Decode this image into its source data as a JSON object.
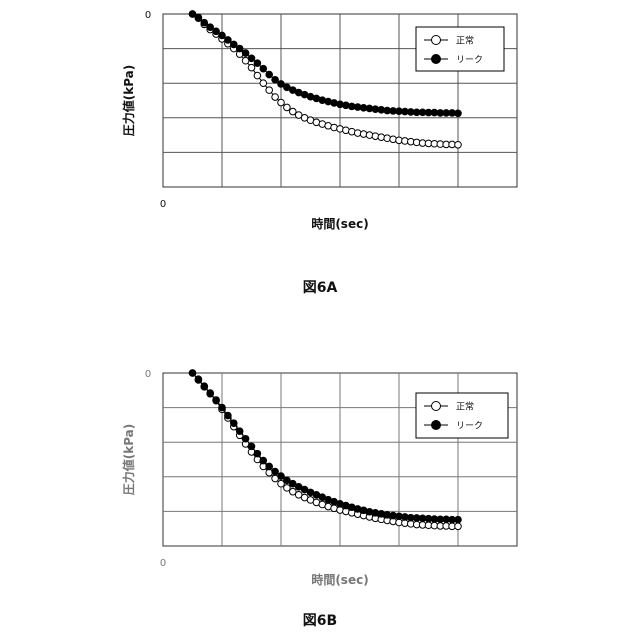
{
  "chart_data": [
    {
      "type": "scatter",
      "figure_label": "図6A",
      "xlabel": "時間(sec)",
      "ylabel": "圧力値(kPa)",
      "y_top_tick": "0",
      "x_origin_tick": "0",
      "grid": true,
      "grid_divisions": {
        "x": 6,
        "y": 5
      },
      "xlim": [
        0,
        6
      ],
      "ylim": [
        -5,
        0
      ],
      "legend_position": "top-right",
      "series": [
        {
          "name": "正常",
          "marker": "open-circle",
          "color": "#000000",
          "x": [
            0.5,
            0.6,
            0.7,
            0.8,
            0.9,
            1.0,
            1.1,
            1.2,
            1.3,
            1.4,
            1.5,
            1.6,
            1.7,
            1.8,
            1.9,
            2.0,
            2.1,
            2.2,
            2.3,
            2.4,
            2.5,
            2.6,
            2.7,
            2.8,
            2.9,
            3.0,
            3.1,
            3.2,
            3.3,
            3.4,
            3.5,
            3.6,
            3.7,
            3.8,
            3.9,
            4.0,
            4.1,
            4.2,
            4.3,
            4.4,
            4.5,
            4.6,
            4.7,
            4.8,
            4.9,
            5.0
          ],
          "y": [
            0.0,
            -0.12,
            -0.3,
            -0.45,
            -0.58,
            -0.72,
            -0.86,
            -1.0,
            -1.16,
            -1.35,
            -1.55,
            -1.78,
            -2.0,
            -2.2,
            -2.4,
            -2.56,
            -2.7,
            -2.82,
            -2.92,
            -3.0,
            -3.07,
            -3.13,
            -3.18,
            -3.23,
            -3.28,
            -3.32,
            -3.36,
            -3.4,
            -3.44,
            -3.47,
            -3.5,
            -3.53,
            -3.56,
            -3.59,
            -3.62,
            -3.65,
            -3.67,
            -3.69,
            -3.71,
            -3.73,
            -3.74,
            -3.75,
            -3.76,
            -3.77,
            -3.77,
            -3.78
          ]
        },
        {
          "name": "リーク",
          "marker": "filled-circle",
          "color": "#000000",
          "x": [
            0.5,
            0.6,
            0.7,
            0.8,
            0.9,
            1.0,
            1.1,
            1.2,
            1.3,
            1.4,
            1.5,
            1.6,
            1.7,
            1.8,
            1.9,
            2.0,
            2.1,
            2.2,
            2.3,
            2.4,
            2.5,
            2.6,
            2.7,
            2.8,
            2.9,
            3.0,
            3.1,
            3.2,
            3.3,
            3.4,
            3.5,
            3.6,
            3.7,
            3.8,
            3.9,
            4.0,
            4.1,
            4.2,
            4.3,
            4.4,
            4.5,
            4.6,
            4.7,
            4.8,
            4.9,
            5.0
          ],
          "y": [
            0.0,
            -0.1,
            -0.25,
            -0.38,
            -0.5,
            -0.62,
            -0.75,
            -0.88,
            -1.0,
            -1.13,
            -1.28,
            -1.42,
            -1.58,
            -1.75,
            -1.9,
            -2.02,
            -2.12,
            -2.2,
            -2.27,
            -2.33,
            -2.39,
            -2.44,
            -2.49,
            -2.53,
            -2.57,
            -2.61,
            -2.64,
            -2.67,
            -2.69,
            -2.71,
            -2.73,
            -2.75,
            -2.77,
            -2.79,
            -2.8,
            -2.81,
            -2.82,
            -2.83,
            -2.84,
            -2.84,
            -2.85,
            -2.85,
            -2.86,
            -2.86,
            -2.86,
            -2.87
          ]
        }
      ]
    },
    {
      "type": "scatter",
      "figure_label": "図6B",
      "xlabel": "時間(sec)",
      "ylabel": "圧力値(kPa)",
      "y_top_tick": "0",
      "x_origin_tick": "0",
      "grid": true,
      "grid_divisions": {
        "x": 6,
        "y": 5
      },
      "xlim": [
        0,
        6
      ],
      "ylim": [
        -5,
        0
      ],
      "legend_position": "top-right",
      "series": [
        {
          "name": "正常",
          "marker": "open-circle",
          "color": "#000000",
          "x": [
            0.5,
            0.6,
            0.7,
            0.8,
            0.9,
            1.0,
            1.1,
            1.2,
            1.3,
            1.4,
            1.5,
            1.6,
            1.7,
            1.8,
            1.9,
            2.0,
            2.1,
            2.2,
            2.3,
            2.4,
            2.5,
            2.6,
            2.7,
            2.8,
            2.9,
            3.0,
            3.1,
            3.2,
            3.3,
            3.4,
            3.5,
            3.6,
            3.7,
            3.8,
            3.9,
            4.0,
            4.1,
            4.2,
            4.3,
            4.4,
            4.5,
            4.6,
            4.7,
            4.8,
            4.9,
            5.0
          ],
          "y": [
            0.0,
            -0.2,
            -0.4,
            -0.6,
            -0.8,
            -1.05,
            -1.3,
            -1.55,
            -1.8,
            -2.05,
            -2.28,
            -2.5,
            -2.7,
            -2.88,
            -3.05,
            -3.2,
            -3.32,
            -3.43,
            -3.52,
            -3.6,
            -3.67,
            -3.74,
            -3.8,
            -3.86,
            -3.91,
            -3.96,
            -4.0,
            -4.04,
            -4.08,
            -4.12,
            -4.16,
            -4.2,
            -4.23,
            -4.26,
            -4.29,
            -4.32,
            -4.34,
            -4.36,
            -4.38,
            -4.39,
            -4.4,
            -4.41,
            -4.42,
            -4.42,
            -4.43,
            -4.43
          ]
        },
        {
          "name": "リーク",
          "marker": "filled-circle",
          "color": "#000000",
          "x": [
            0.5,
            0.6,
            0.7,
            0.8,
            0.9,
            1.0,
            1.1,
            1.2,
            1.3,
            1.4,
            1.5,
            1.6,
            1.7,
            1.8,
            1.9,
            2.0,
            2.1,
            2.2,
            2.3,
            2.4,
            2.5,
            2.6,
            2.7,
            2.8,
            2.9,
            3.0,
            3.1,
            3.2,
            3.3,
            3.4,
            3.5,
            3.6,
            3.7,
            3.8,
            3.9,
            4.0,
            4.1,
            4.2,
            4.3,
            4.4,
            4.5,
            4.6,
            4.7,
            4.8,
            4.9,
            5.0
          ],
          "y": [
            0.0,
            -0.18,
            -0.38,
            -0.58,
            -0.78,
            -1.0,
            -1.23,
            -1.45,
            -1.68,
            -1.9,
            -2.12,
            -2.33,
            -2.53,
            -2.7,
            -2.85,
            -2.98,
            -3.1,
            -3.2,
            -3.29,
            -3.37,
            -3.45,
            -3.52,
            -3.59,
            -3.66,
            -3.72,
            -3.78,
            -3.83,
            -3.88,
            -3.93,
            -3.97,
            -4.01,
            -4.04,
            -4.07,
            -4.1,
            -4.12,
            -4.14,
            -4.16,
            -4.18,
            -4.19,
            -4.2,
            -4.21,
            -4.22,
            -4.23,
            -4.23,
            -4.24,
            -4.24
          ]
        }
      ]
    }
  ]
}
